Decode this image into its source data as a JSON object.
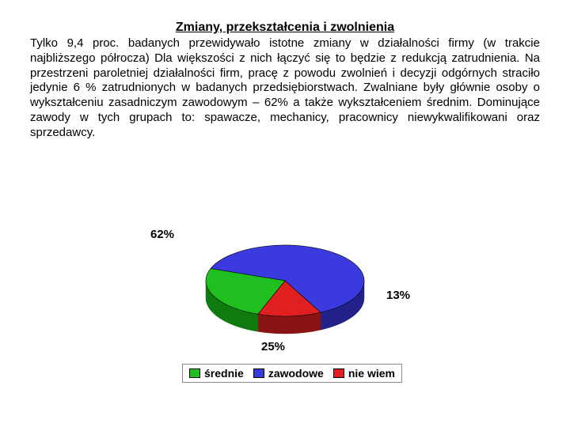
{
  "title": "Zmiany, przekształcenia i zwolnienia",
  "body": "Tylko 9,4 proc. badanych przewidywało istotne zmiany w działalności firmy (w trakcie najbliższego półrocza)\nDla większości z nich łączyć się to będzie z redukcją zatrudnienia. Na przestrzeni paroletniej działalności firm, pracę z powodu zwolnień i decyzji odgórnych straciło jedynie 6 % zatrudnionych w badanych przedsiębiorstwach. Zwalniane były głównie osoby o wykształceniu zasadniczym zawodowym – 62% a także wykształceniem średnim. Dominujące zawody w tych grupach to: spawacze, mechanicy, pracownicy niewykwalifikowani oraz sprzedawcy.",
  "chart": {
    "type": "pie",
    "background_color": "#ffffff",
    "label_fontsize": 15,
    "label_weight": "bold",
    "legend_fontsize": 14,
    "slices": [
      {
        "name": "zawodowe",
        "value": 62,
        "label": "62%",
        "color_top": "#3a3adf",
        "color_side": "#22228a"
      },
      {
        "name": "nie wiem",
        "value": 13,
        "label": "13%",
        "color_top": "#e02020",
        "color_side": "#8a1414"
      },
      {
        "name": "średnie",
        "value": 25,
        "label": "25%",
        "color_top": "#1fbf1f",
        "color_side": "#0f7a0f"
      }
    ],
    "legend": [
      {
        "swatch": "#1fbf1f",
        "text": "średnie"
      },
      {
        "swatch": "#3a3adf",
        "text": "zawodowe"
      },
      {
        "swatch": "#e02020",
        "text": "nie wiem"
      }
    ]
  }
}
